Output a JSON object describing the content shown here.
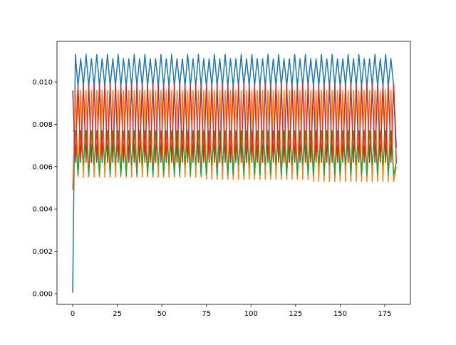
{
  "chart_data": {
    "type": "line",
    "x": [
      0,
      1.5,
      3,
      4.5,
      6,
      7.5,
      9,
      10.5,
      12,
      13.5,
      15,
      16.5,
      18,
      19.5,
      21,
      22.5,
      24,
      25.5,
      27,
      28.5,
      30,
      31.5,
      33,
      34.5,
      36,
      37.5,
      39,
      40.5,
      42,
      43.5,
      45,
      46.5,
      48,
      49.5,
      51,
      52.5,
      54,
      55.5,
      57,
      58.5,
      60,
      61.5,
      63,
      64.5,
      66,
      67.5,
      69,
      70.5,
      72,
      73.5,
      75,
      76.5,
      78,
      79.5,
      81,
      82.5,
      84,
      85.5,
      87,
      88.5,
      90,
      91.5,
      93,
      94.5,
      96,
      97.5,
      99,
      100.5,
      102,
      103.5,
      105,
      106.5,
      108,
      109.5,
      111,
      112.5,
      114,
      115.5,
      117,
      118.5,
      120,
      121.5,
      123,
      124.5,
      126,
      127.5,
      129,
      130.5,
      132,
      133.5,
      135,
      136.5,
      138,
      139.5,
      141,
      142.5,
      144,
      145.5,
      147,
      148.5,
      150,
      151.5,
      153,
      154.5,
      156,
      157.5,
      159,
      160.5,
      162,
      163.5,
      165,
      166.5,
      168,
      169.5,
      171,
      172.5,
      174,
      175.5,
      177,
      178.5,
      180,
      181.5
    ],
    "series": [
      {
        "color": "#1f77b4",
        "values": [
          5e-05,
          0.0113,
          0.0098,
          0.0111,
          0.0098,
          0.0113,
          0.0098,
          0.0111,
          0.0098,
          0.0113,
          0.0098,
          0.0111,
          0.0098,
          0.0113,
          0.0098,
          0.0111,
          0.0098,
          0.0113,
          0.0098,
          0.0111,
          0.0098,
          0.0111,
          0.0098,
          0.0113,
          0.0098,
          0.0111,
          0.0098,
          0.0113,
          0.0098,
          0.0111,
          0.0098,
          0.0111,
          0.0098,
          0.0113,
          0.0098,
          0.0111,
          0.0098,
          0.0113,
          0.0098,
          0.0111,
          0.0098,
          0.0111,
          0.0098,
          0.0113,
          0.0098,
          0.0111,
          0.0098,
          0.0113,
          0.0098,
          0.0111,
          0.0098,
          0.0111,
          0.0098,
          0.0113,
          0.0098,
          0.0111,
          0.0098,
          0.0113,
          0.0098,
          0.0111,
          0.0098,
          0.0111,
          0.0098,
          0.0113,
          0.0098,
          0.0111,
          0.0098,
          0.0113,
          0.0098,
          0.0111,
          0.0098,
          0.0111,
          0.0098,
          0.0113,
          0.0098,
          0.0111,
          0.0098,
          0.0113,
          0.0098,
          0.0111,
          0.0098,
          0.0111,
          0.0098,
          0.0113,
          0.0098,
          0.0111,
          0.0098,
          0.0113,
          0.0098,
          0.0111,
          0.0098,
          0.0111,
          0.0098,
          0.0113,
          0.0098,
          0.0111,
          0.0098,
          0.0113,
          0.0098,
          0.0111,
          0.0098,
          0.0111,
          0.0098,
          0.0113,
          0.0098,
          0.0111,
          0.0098,
          0.0113,
          0.0098,
          0.0111,
          0.0098,
          0.0111,
          0.0098,
          0.0113,
          0.0098,
          0.0111,
          0.0098,
          0.0113,
          0.0098,
          0.0111,
          0.0098,
          0.0069
        ]
      },
      {
        "color": "#ff7f0e",
        "values": [
          0.0049,
          0.0096,
          0.0055,
          0.0096,
          0.0055,
          0.0096,
          0.0055,
          0.0096,
          0.0055,
          0.0096,
          0.0055,
          0.0096,
          0.0055,
          0.0096,
          0.0055,
          0.0096,
          0.0055,
          0.0096,
          0.0055,
          0.0096,
          0.0055,
          0.0096,
          0.0055,
          0.0096,
          0.0055,
          0.0096,
          0.0055,
          0.0096,
          0.0055,
          0.0096,
          0.0055,
          0.0096,
          0.0055,
          0.0096,
          0.0055,
          0.0096,
          0.0055,
          0.0096,
          0.0055,
          0.0096,
          0.0055,
          0.0096,
          0.0055,
          0.0096,
          0.0055,
          0.0096,
          0.0055,
          0.0096,
          0.0055,
          0.0096,
          0.0054,
          0.0096,
          0.0054,
          0.0096,
          0.0054,
          0.0096,
          0.0054,
          0.0096,
          0.0054,
          0.0096,
          0.0054,
          0.0096,
          0.0054,
          0.0096,
          0.0054,
          0.0096,
          0.0054,
          0.0096,
          0.0054,
          0.0096,
          0.0054,
          0.0096,
          0.0054,
          0.0096,
          0.0054,
          0.0096,
          0.0054,
          0.0096,
          0.0054,
          0.0096,
          0.0054,
          0.0096,
          0.0054,
          0.0096,
          0.0054,
          0.0096,
          0.0054,
          0.0096,
          0.0054,
          0.0096,
          0.0053,
          0.0096,
          0.0053,
          0.0096,
          0.0053,
          0.0096,
          0.0053,
          0.0096,
          0.0053,
          0.0096,
          0.0053,
          0.0096,
          0.0053,
          0.0096,
          0.0053,
          0.0096,
          0.0053,
          0.0096,
          0.0053,
          0.0096,
          0.0053,
          0.0096,
          0.0053,
          0.0096,
          0.0053,
          0.0096,
          0.0053,
          0.0096,
          0.0053,
          0.0096,
          0.0053,
          0.006
        ]
      },
      {
        "color": "#2ca02c",
        "values": [
          0.0077,
          0.0077,
          0.0056,
          0.0077,
          0.0061,
          0.0077,
          0.0056,
          0.0077,
          0.0061,
          0.0077,
          0.0056,
          0.0077,
          0.0061,
          0.0077,
          0.0056,
          0.0077,
          0.0061,
          0.0077,
          0.0056,
          0.0077,
          0.0056,
          0.0077,
          0.0061,
          0.0077,
          0.0056,
          0.0077,
          0.0061,
          0.0077,
          0.0056,
          0.0077,
          0.0056,
          0.0077,
          0.0061,
          0.0077,
          0.0056,
          0.0077,
          0.0061,
          0.0077,
          0.0056,
          0.0077,
          0.0056,
          0.0077,
          0.0061,
          0.0077,
          0.0056,
          0.0077,
          0.0061,
          0.0077,
          0.0056,
          0.0077,
          0.0056,
          0.0077,
          0.0061,
          0.0077,
          0.0056,
          0.0077,
          0.0061,
          0.0077,
          0.0056,
          0.0077,
          0.0056,
          0.0077,
          0.0061,
          0.0077,
          0.0056,
          0.0077,
          0.0061,
          0.0077,
          0.0056,
          0.0077,
          0.0056,
          0.0077,
          0.0061,
          0.0077,
          0.0056,
          0.0077,
          0.0061,
          0.0077,
          0.0056,
          0.0077,
          0.0056,
          0.0077,
          0.0061,
          0.0077,
          0.0056,
          0.0077,
          0.0061,
          0.0077,
          0.0056,
          0.0077,
          0.0056,
          0.0077,
          0.0061,
          0.0077,
          0.0056,
          0.0077,
          0.0061,
          0.0077,
          0.0056,
          0.0077,
          0.0056,
          0.0077,
          0.0061,
          0.0077,
          0.0056,
          0.0077,
          0.0061,
          0.0077,
          0.0056,
          0.0077,
          0.0056,
          0.0077,
          0.0061,
          0.0077,
          0.0056,
          0.0077,
          0.0061,
          0.0077,
          0.0056,
          0.0077,
          0.0056,
          0.0062
        ]
      },
      {
        "color": "#d62728",
        "values": [
          0.0096,
          0.0062,
          0.0099,
          0.0062,
          0.0099,
          0.0062,
          0.0099,
          0.0062,
          0.0099,
          0.0062,
          0.0099,
          0.0062,
          0.0099,
          0.0062,
          0.0099,
          0.0062,
          0.0099,
          0.0062,
          0.0099,
          0.0062,
          0.0099,
          0.0062,
          0.0099,
          0.0062,
          0.0099,
          0.0062,
          0.0099,
          0.0062,
          0.0099,
          0.0062,
          0.0099,
          0.0062,
          0.0099,
          0.0062,
          0.0099,
          0.0062,
          0.0099,
          0.0062,
          0.0099,
          0.0062,
          0.0099,
          0.0062,
          0.0099,
          0.0062,
          0.0099,
          0.0062,
          0.0099,
          0.0062,
          0.0099,
          0.0062,
          0.0099,
          0.0062,
          0.0099,
          0.0062,
          0.0099,
          0.0062,
          0.0099,
          0.0062,
          0.0099,
          0.0062,
          0.0099,
          0.0062,
          0.0099,
          0.0062,
          0.0099,
          0.0062,
          0.0099,
          0.0062,
          0.0099,
          0.0062,
          0.0099,
          0.0062,
          0.0099,
          0.0062,
          0.0099,
          0.0062,
          0.0099,
          0.0062,
          0.0099,
          0.0062,
          0.0099,
          0.0062,
          0.0099,
          0.0062,
          0.0099,
          0.0062,
          0.0099,
          0.0062,
          0.0099,
          0.0062,
          0.0099,
          0.0062,
          0.0099,
          0.0062,
          0.0099,
          0.0062,
          0.0099,
          0.0062,
          0.0099,
          0.0062,
          0.0099,
          0.0062,
          0.0099,
          0.0062,
          0.0099,
          0.0062,
          0.0099,
          0.0062,
          0.0099,
          0.0062,
          0.0099,
          0.0062,
          0.0099,
          0.0062,
          0.0099,
          0.0062,
          0.0099,
          0.0062,
          0.0099,
          0.0062,
          0.0099,
          0.0062
        ]
      }
    ],
    "xlim": [
      -8.8,
      189.4
    ],
    "ylim": [
      -0.000505,
      0.01192
    ],
    "xticks": [
      0,
      25,
      50,
      75,
      100,
      125,
      150,
      175
    ],
    "yticks": [
      {
        "value": 0,
        "label": "0.000"
      },
      0.002,
      0.004,
      0.006,
      0.008,
      {
        "value": 0.01,
        "label": "0.010"
      }
    ]
  }
}
